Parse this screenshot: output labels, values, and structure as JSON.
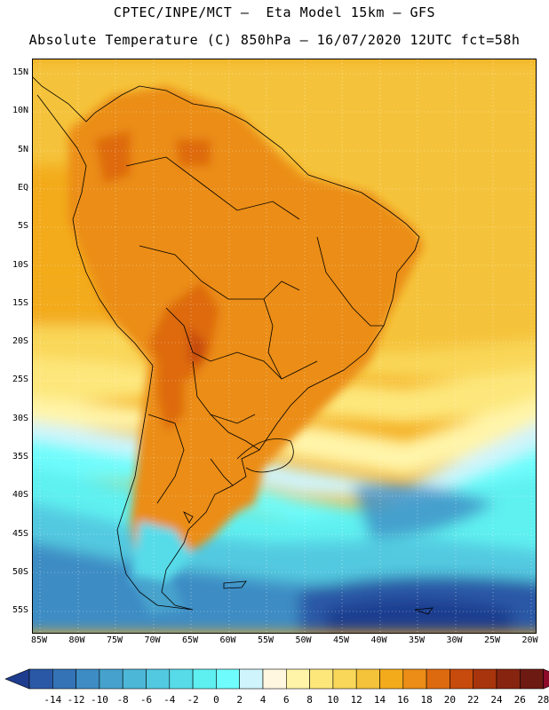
{
  "title_line1": "CPTEC/INPE/MCT –  Eta Model 15km – GFS",
  "title_line2": "Absolute Temperature (C) 850hPa – 16/07/2020 12UTC fct=58h",
  "map": {
    "lat_labels": [
      "15N",
      "10N",
      "5N",
      "EQ",
      "5S",
      "10S",
      "15S",
      "20S",
      "25S",
      "30S",
      "35S",
      "40S",
      "45S",
      "50S",
      "55S"
    ],
    "lon_labels": [
      "85W",
      "80W",
      "75W",
      "70W",
      "65W",
      "60W",
      "55W",
      "50W",
      "45W",
      "40W",
      "35W",
      "30W",
      "25W",
      "20W"
    ],
    "gridlines": "dotted"
  },
  "colorbar": {
    "labels": [
      "-14",
      "-12",
      "-10",
      "-8",
      "-6",
      "-4",
      "-2",
      "0",
      "2",
      "4",
      "6",
      "8",
      "10",
      "12",
      "14",
      "16",
      "18",
      "20",
      "22",
      "24",
      "26",
      "28"
    ],
    "colors": [
      "#1f3d8f",
      "#2a58a6",
      "#3473b5",
      "#3e8cc4",
      "#46a2cc",
      "#4cb7d6",
      "#52c9e0",
      "#57dbe9",
      "#5ef0f0",
      "#6ffcfc",
      "#cff4fb",
      "#fff7e0",
      "#fff4a8",
      "#fde77b",
      "#f9d758",
      "#f5c33a",
      "#f3ab1b",
      "#eb8d16",
      "#de6a0f",
      "#c74b0c",
      "#a7340c",
      "#872410",
      "#6d1a12",
      "#8c0a2a"
    ],
    "colors_note_ends": "triangular extensions on both ends"
  }
}
